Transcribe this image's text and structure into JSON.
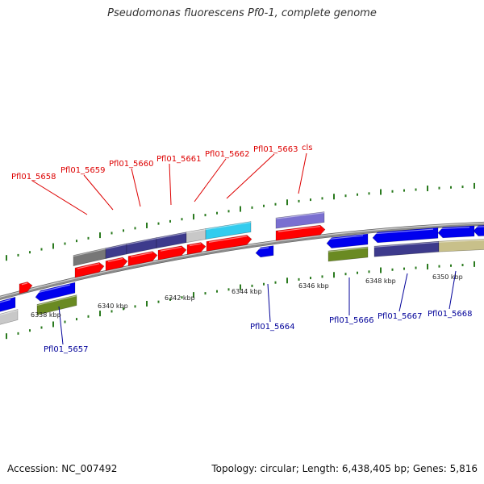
{
  "title": "Pseudomonas fluorescens Pf0-1, complete genome",
  "footer": {
    "accession": "Accession: NC_007492",
    "summary": "Topology: circular; Length: 6,438,405 bp; Genes: 5,816"
  },
  "colors": {
    "backbone": "#8c8c8c",
    "tick_dots": "#2a7a1e",
    "cds": "#ff0000",
    "gene_top": "#3f3bc8",
    "gene_bottom": "#0000ee",
    "product_grey": "#777777",
    "product_navy": "#3d3a8c",
    "product_light": "#c8c8c8",
    "product_cyan": "#33ccee",
    "product_lavender": "#7a6fd0",
    "product_olive": "#6a8a22",
    "product_khaki": "#c8c08a",
    "label_top": "#dd0000",
    "label_bottom": "#000099"
  },
  "scale_labels": [
    "6338 kbp",
    "6340 kbp",
    "6342 kbp",
    "6344 kbp",
    "6346 kbp",
    "6348 kbp",
    "6350 kbp"
  ],
  "top_gene_labels": [
    "Pfl01_5658",
    "Pfl01_5659",
    "Pfl01_5660",
    "Pfl01_5661",
    "Pfl01_5662",
    "Pfl01_5663",
    "cls"
  ],
  "bottom_gene_labels": [
    "Pfl01_5657",
    "Pfl01_5664",
    "Pfl01_5666",
    "Pfl01_5667",
    "Pfl01_5668"
  ]
}
